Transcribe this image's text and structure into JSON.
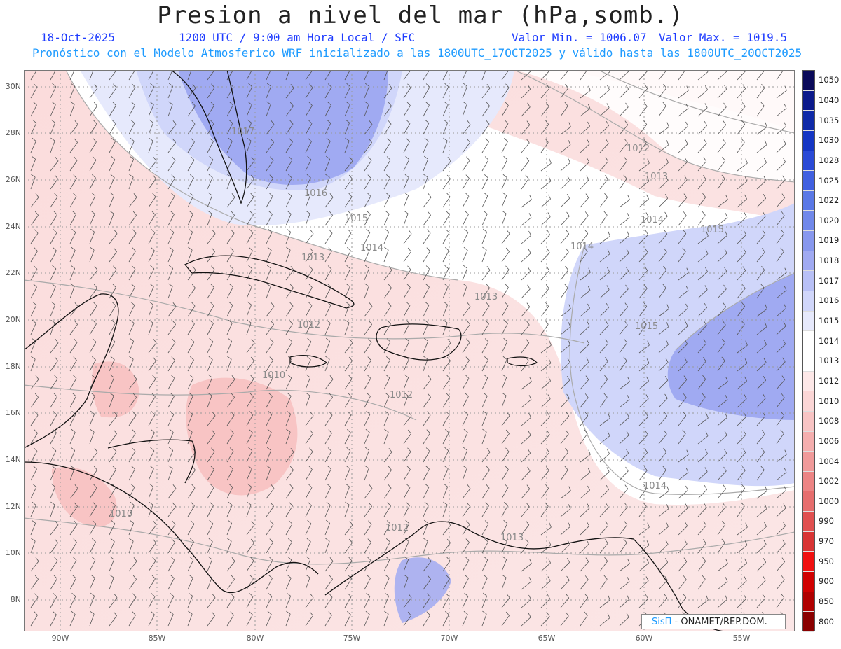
{
  "header": {
    "title": "Presion a nivel del mar (hPa,somb.)",
    "date": "18-Oct-2025",
    "time_info": "1200 UTC / 9:00 am Hora Local / SFC",
    "min_value": "Valor Min. = 1006.07",
    "max_value": "Valor Max. = 1019.5",
    "forecast_line": "Pronóstico con el Modelo Atmosferico WRF inicializado a las 1800UTC_17OCT2025 y válido hasta las  1800UTC_20OCT2025"
  },
  "axes": {
    "lat_labels": [
      "30N",
      "28N",
      "26N",
      "24N",
      "22N",
      "20N",
      "18N",
      "16N",
      "14N",
      "12N",
      "10N",
      "8N"
    ],
    "lon_labels": [
      "90W",
      "85W",
      "80W",
      "75W",
      "70W",
      "65W",
      "60W",
      "55W"
    ]
  },
  "colorbar": {
    "levels": [
      "1050",
      "1040",
      "1035",
      "1030",
      "1028",
      "1025",
      "1022",
      "1020",
      "1019",
      "1018",
      "1017",
      "1016",
      "1015",
      "1014",
      "1013",
      "1012",
      "1010",
      "1008",
      "1006",
      "1004",
      "1002",
      "1000",
      "990",
      "970",
      "950",
      "900",
      "850",
      "800"
    ],
    "colors": [
      "#0a0a5a",
      "#0b1a8c",
      "#0f2aa8",
      "#1536c4",
      "#2a4ad6",
      "#4060e0",
      "#5a78e6",
      "#7088ea",
      "#8898ee",
      "#a0aaf2",
      "#b8c0f6",
      "#d0d6fa",
      "#e6e9fc",
      "#ffffff",
      "#ffffff",
      "#fde8e8",
      "#fbd6d6",
      "#f8c4c4",
      "#f4aeae",
      "#f09a9a",
      "#ec8484",
      "#e66e6e",
      "#e05050",
      "#d83434",
      "#f01010",
      "#d00000",
      "#b00000",
      "#8a0000"
    ]
  },
  "map_labels": {
    "contours": [
      "1017",
      "1016",
      "1015",
      "1014",
      "1013",
      "1013",
      "1012",
      "1012",
      "1012",
      "1013",
      "1014",
      "1014",
      "1015",
      "1015",
      "1014",
      "1010",
      "1010",
      "1012",
      "1013"
    ]
  },
  "credit": {
    "sis": "SisΠ",
    "org": " - ONAMET/REP.DOM."
  }
}
